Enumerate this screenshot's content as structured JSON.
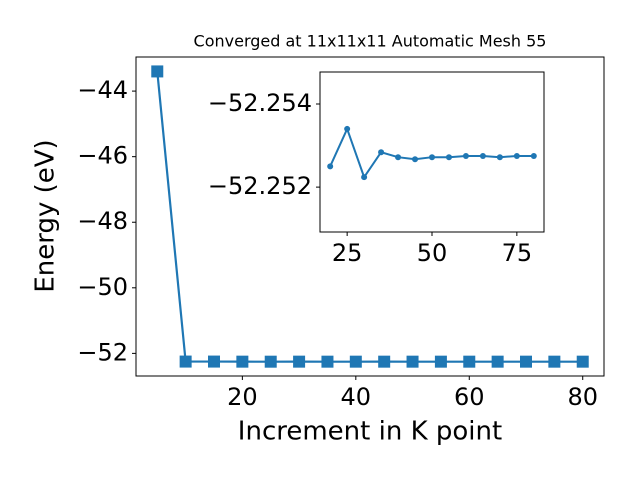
{
  "chart_data": [
    {
      "type": "line",
      "title": "Converged at 11x11x11 Automatic Mesh 55",
      "xlabel": "Increment in K point",
      "ylabel": "Energy (eV)",
      "x": [
        5,
        10,
        15,
        20,
        25,
        30,
        35,
        40,
        45,
        50,
        55,
        60,
        65,
        70,
        75,
        80
      ],
      "series": [
        {
          "color": "#1f77b4",
          "marker": "square",
          "values": [
            -43.4,
            -52.25,
            -52.25,
            -52.2525,
            -52.2534,
            -52.25224,
            -52.25284,
            -52.25272,
            -52.25267,
            -52.25272,
            -52.25272,
            -52.25275,
            -52.25275,
            -52.25272,
            -52.25275,
            -52.25275
          ]
        }
      ],
      "xlim": [
        1.25,
        83.75
      ],
      "ylim": [
        -52.69,
        -42.96
      ],
      "xticks": [
        20,
        40,
        60,
        80
      ],
      "yticks": [
        {
          "value": -52,
          "label": "−52"
        },
        {
          "value": -50,
          "label": "−50"
        },
        {
          "value": -48,
          "label": "−48"
        },
        {
          "value": -46,
          "label": "−46"
        },
        {
          "value": -44,
          "label": "−44"
        }
      ]
    },
    {
      "type": "line",
      "x": [
        20,
        25,
        30,
        35,
        40,
        45,
        50,
        55,
        60,
        65,
        70,
        75,
        80
      ],
      "series": [
        {
          "color": "#1f77b4",
          "marker": "circle",
          "values": [
            -52.2525,
            -52.2534,
            -52.25224,
            -52.25284,
            -52.25272,
            -52.25267,
            -52.25272,
            -52.25272,
            -52.25275,
            -52.25275,
            -52.25272,
            -52.25275,
            -52.25275
          ]
        }
      ],
      "xlim": [
        17,
        83
      ],
      "ylim": [
        -52.25092,
        -52.25477
      ],
      "xticks": [
        25,
        50,
        75
      ],
      "yticks": [
        {
          "value": -52.252,
          "label": "−52.252"
        },
        {
          "value": -52.254,
          "label": "−52.254"
        }
      ]
    }
  ]
}
